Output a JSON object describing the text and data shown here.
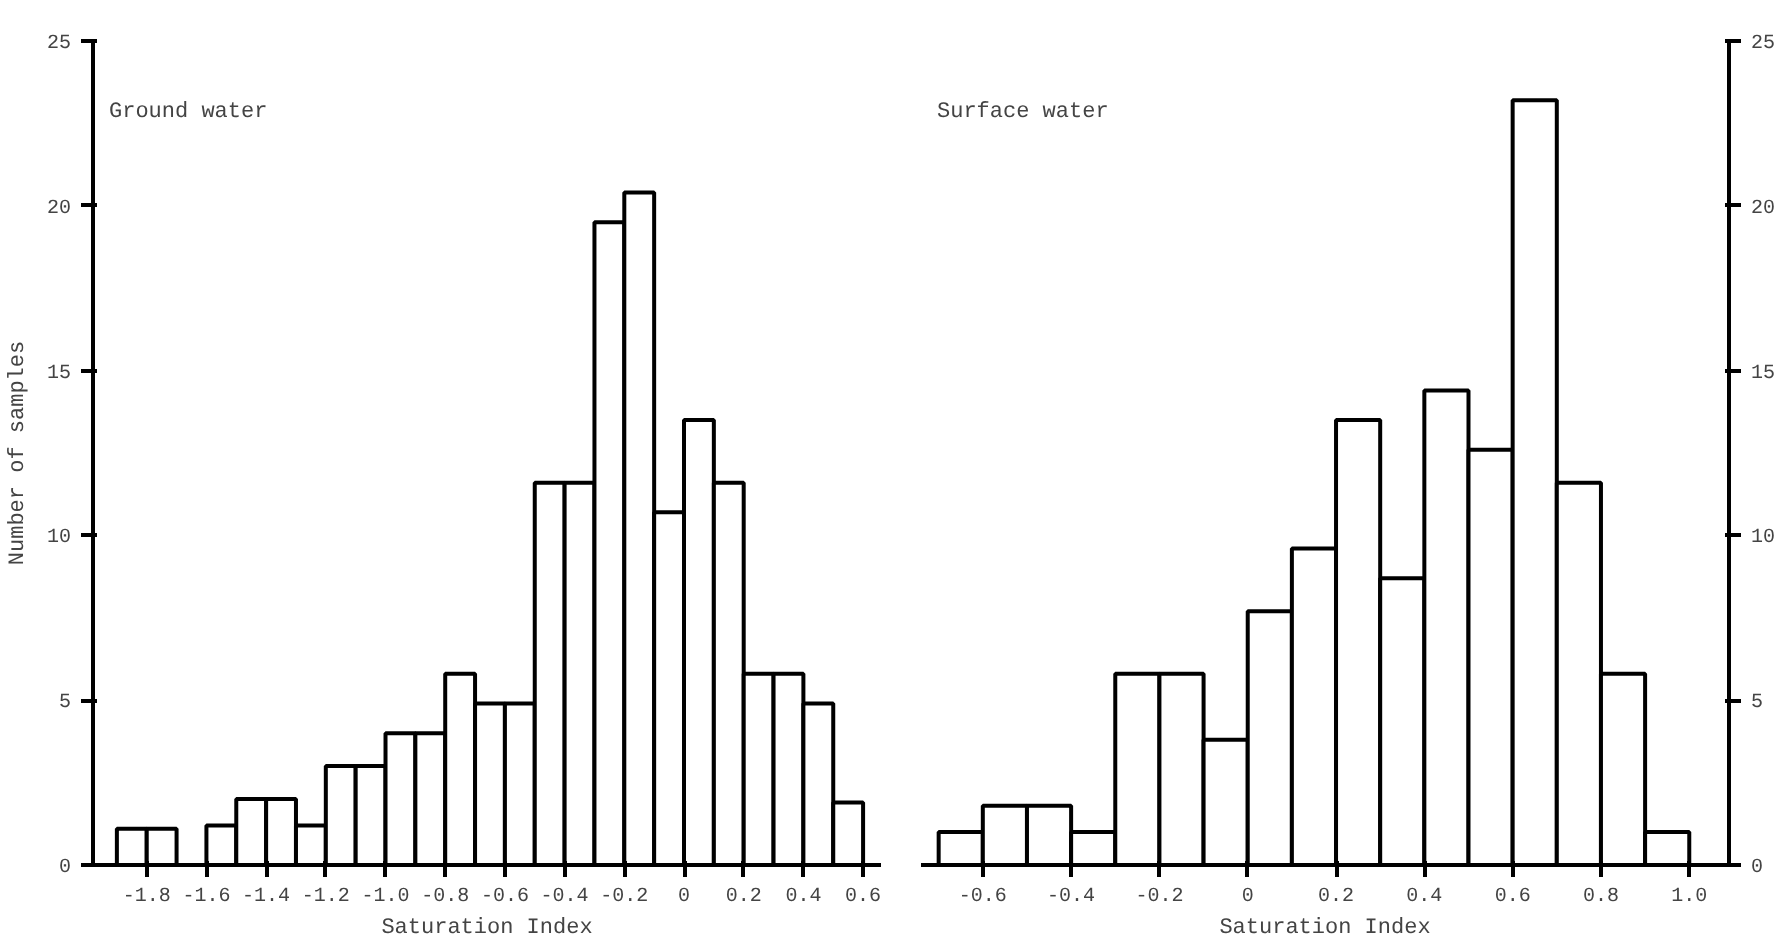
{
  "chart_data": [
    {
      "type": "histogram",
      "xlabel": "Saturation Index",
      "ylabel": "Number of samples",
      "annotations": [
        "Ground water"
      ],
      "bins": [
        -1.9,
        -1.8,
        -1.7,
        -1.6,
        -1.5,
        -1.4,
        -1.3,
        -1.2,
        -1.1,
        -1.0,
        -0.9,
        -0.8,
        -0.7,
        -0.6,
        -0.5,
        -0.4,
        -0.3,
        -0.2,
        -0.1,
        0,
        0.1,
        0.2,
        0.3,
        0.4,
        0.5,
        0.6
      ],
      "values": [
        1.1,
        1.1,
        null,
        1.2,
        2,
        2,
        1.2,
        3,
        3,
        4,
        4,
        5.8,
        4.9,
        4.9,
        11.6,
        11.6,
        19.5,
        20.4,
        10.7,
        13.5,
        11.6,
        5.8,
        5.8,
        4.9,
        1.9
      ],
      "color": "#ffffff",
      "xlim": [
        -1.98,
        0.66
      ],
      "ylim": [
        0,
        25
      ],
      "xticks": [
        -1.8,
        -1.6,
        -1.4,
        -1.2,
        {
          "value": -1.0,
          "label": "-1.0"
        },
        -0.8,
        -0.6,
        -0.4,
        -0.2,
        0,
        0.2,
        0.4,
        0.6
      ],
      "yticks": [
        0,
        5,
        10,
        15,
        20,
        25
      ],
      "grid": false
    },
    {
      "type": "histogram",
      "xlabel": "Saturation Index",
      "annotations": [
        "Surface water"
      ],
      "bins": [
        -0.7,
        -0.6,
        -0.5,
        -0.4,
        -0.3,
        -0.2,
        -0.1,
        0,
        0.1,
        0.2,
        0.3,
        0.4,
        0.5,
        0.6,
        0.7,
        0.8,
        0.9,
        1.0
      ],
      "values": [
        1,
        1.8,
        1.8,
        1,
        5.8,
        5.8,
        3.8,
        7.7,
        9.6,
        13.5,
        8.7,
        14.4,
        12.6,
        23.2,
        11.6,
        5.8,
        1
      ],
      "color": "#ffffff",
      "xlim": [
        -0.74,
        1.09
      ],
      "ylim": [
        0,
        25
      ],
      "xticks": [
        -0.6,
        -0.4,
        -0.2,
        0,
        0.2,
        0.4,
        0.6,
        0.8,
        {
          "value": 1.0,
          "label": "1.0"
        }
      ],
      "yticks": [
        0,
        5,
        10,
        15,
        20,
        25
      ],
      "grid": false
    }
  ]
}
